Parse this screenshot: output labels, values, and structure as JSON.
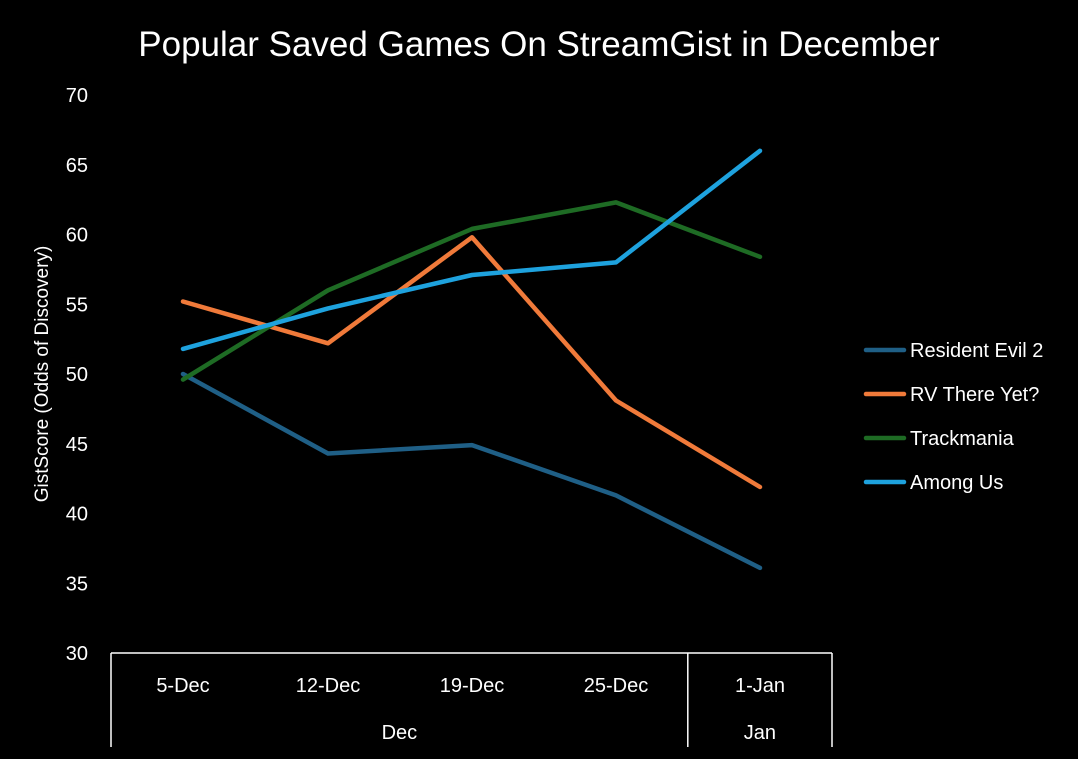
{
  "chart_data": {
    "type": "line",
    "title": "Popular Saved Games On StreamGist in December",
    "xlabel": "",
    "ylabel": "GistScore (Odds of Discovery)",
    "ylim": [
      30,
      70
    ],
    "y_ticks": [
      "30",
      "35",
      "40",
      "45",
      "50",
      "55",
      "60",
      "65",
      "70"
    ],
    "categories": [
      "5-Dec",
      "12-Dec",
      "19-Dec",
      "25-Dec",
      "1-Jan"
    ],
    "category_groups": [
      {
        "label": "Dec",
        "count": 4
      },
      {
        "label": "Jan",
        "count": 1
      }
    ],
    "grid": false,
    "legend_position": "right",
    "series": [
      {
        "name": "Resident Evil 2",
        "color": "#1f5f86",
        "values": [
          50.0,
          44.3,
          44.9,
          41.3,
          36.1
        ]
      },
      {
        "name": "RV There Yet?",
        "color": "#f07a3a",
        "values": [
          55.2,
          52.2,
          59.8,
          48.1,
          41.9
        ]
      },
      {
        "name": "Trackmania",
        "color": "#1e6b24",
        "values": [
          49.6,
          56.0,
          60.4,
          62.3,
          58.4
        ]
      },
      {
        "name": "Among Us",
        "color": "#1ea2de",
        "values": [
          51.8,
          54.7,
          57.1,
          58.0,
          66.0
        ]
      }
    ]
  }
}
